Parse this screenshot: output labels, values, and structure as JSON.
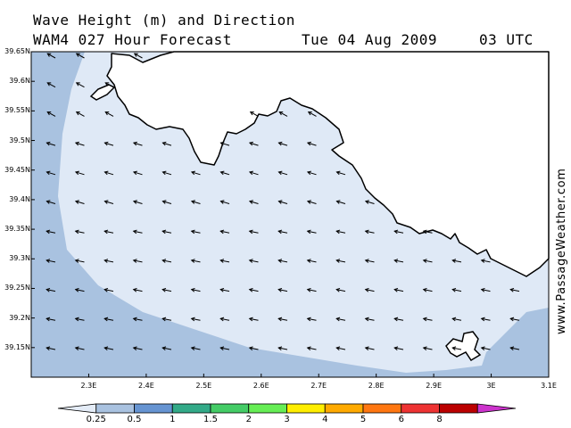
{
  "title": {
    "line1": "Wave Height (m) and Direction",
    "model": "WAM4 027 Hour Forecast",
    "date": "Tue 04 Aug 2009",
    "time": "03 UTC"
  },
  "watermark": "www.PassageWeather.com",
  "axes": {
    "lat_ticks": [
      "39.65N",
      "39.6N",
      "39.55N",
      "39.5N",
      "39.45N",
      "39.4N",
      "39.35N",
      "39.3N",
      "39.25N",
      "39.2N",
      "39.15N"
    ],
    "lat_values": [
      39.65,
      39.6,
      39.55,
      39.5,
      39.45,
      39.4,
      39.35,
      39.3,
      39.25,
      39.2,
      39.15
    ],
    "lon_ticks": [
      "2.3E",
      "2.4E",
      "2.5E",
      "2.6E",
      "2.7E",
      "2.8E",
      "2.9E",
      "3E",
      "3.1E"
    ],
    "lon_values": [
      2.3,
      2.4,
      2.5,
      2.6,
      2.7,
      2.8,
      2.9,
      3.0,
      3.1
    ],
    "lon_range": [
      2.2,
      3.1
    ],
    "lat_range": [
      39.1,
      39.65
    ]
  },
  "colorbar": {
    "labels": [
      "0.25",
      "0.5",
      "1",
      "1.5",
      "2",
      "3",
      "4",
      "5",
      "6",
      "8"
    ],
    "colors": [
      "#e4ecf7",
      "#a9c2e0",
      "#6694d2",
      "#33aa88",
      "#44cc66",
      "#66ee55",
      "#ffee00",
      "#ffaa00",
      "#ff7711",
      "#ee3333",
      "#bb0000",
      "#cc33cc"
    ]
  },
  "fill_colors": {
    "land": "#ffffff",
    "calm": "#dfe9f6",
    "mid": "#a9c2e0"
  }
}
